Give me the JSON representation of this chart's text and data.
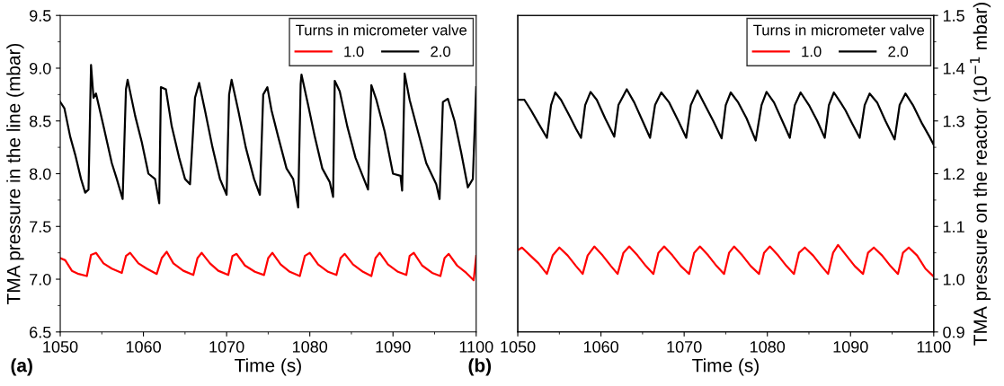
{
  "chart_data": [
    {
      "type": "line",
      "xlabel": "Time (s)",
      "ylabel": "TMA pressure in the line (mbar)",
      "legend_title": "Turns in micrometer valve",
      "legend": "top right",
      "annotations": [
        "(a)"
      ],
      "xlim": [
        1050,
        1100
      ],
      "xticks": [
        1050,
        1060,
        1070,
        1080,
        1090,
        1100
      ],
      "ylim": [
        6.5,
        9.5
      ],
      "yticks": [
        6.5,
        {
          "value": 7,
          "label": "7.0"
        },
        7.5,
        {
          "value": 8,
          "label": "8.0"
        },
        8.5,
        {
          "value": 9,
          "label": "9.0"
        },
        9.5
      ],
      "series": [
        {
          "name": "1.0",
          "color": "#ff0000",
          "x": [
            1050,
            1050.6,
            1051.4,
            1052.2,
            1053.2,
            1053.7,
            1054.3,
            1055.2,
            1056.2,
            1057.4,
            1057.9,
            1058.4,
            1059.4,
            1060.4,
            1061.6,
            1062.2,
            1062.8,
            1063.6,
            1064.8,
            1066.0,
            1066.5,
            1067.0,
            1068.0,
            1069.0,
            1070.2,
            1070.7,
            1071.2,
            1072.2,
            1073.4,
            1074.5,
            1075.0,
            1075.5,
            1076.5,
            1077.6,
            1078.8,
            1079.4,
            1080.0,
            1081.0,
            1082.2,
            1083.2,
            1083.7,
            1084.2,
            1085.2,
            1086.4,
            1087.4,
            1087.9,
            1088.4,
            1089.4,
            1090.6,
            1091.6,
            1092.0,
            1092.5,
            1093.5,
            1094.7,
            1095.7,
            1096.2,
            1096.7,
            1097.7,
            1098.8,
            1099.7,
            1100
          ],
          "values": [
            7.2,
            7.18,
            7.08,
            7.05,
            7.03,
            7.23,
            7.25,
            7.15,
            7.1,
            7.06,
            7.22,
            7.25,
            7.15,
            7.1,
            7.05,
            7.2,
            7.26,
            7.15,
            7.08,
            7.04,
            7.2,
            7.25,
            7.15,
            7.08,
            7.04,
            7.22,
            7.24,
            7.13,
            7.07,
            7.04,
            7.2,
            7.25,
            7.14,
            7.07,
            7.03,
            7.22,
            7.25,
            7.14,
            7.07,
            7.04,
            7.2,
            7.24,
            7.14,
            7.07,
            7.03,
            7.2,
            7.25,
            7.14,
            7.07,
            7.04,
            7.22,
            7.25,
            7.13,
            7.06,
            7.03,
            7.2,
            7.24,
            7.13,
            7.06,
            6.99,
            7.22
          ]
        },
        {
          "name": "2.0",
          "color": "#000000",
          "x": [
            1050,
            1050.5,
            1051.2,
            1051.8,
            1052.5,
            1053.0,
            1053.4,
            1053.7,
            1054.0,
            1054.3,
            1055.2,
            1056.2,
            1056.8,
            1057.5,
            1057.9,
            1058.1,
            1059.0,
            1059.8,
            1060.6,
            1061.4,
            1061.9,
            1062.1,
            1062.7,
            1063.4,
            1064.3,
            1065.0,
            1065.6,
            1066.2,
            1066.7,
            1067.4,
            1068.3,
            1069.2,
            1070.0,
            1070.3,
            1070.6,
            1071.4,
            1072.3,
            1073.3,
            1074.0,
            1074.4,
            1074.9,
            1075.4,
            1076.2,
            1077.2,
            1078.0,
            1078.6,
            1078.9,
            1079.0,
            1079.8,
            1080.6,
            1081.5,
            1082.4,
            1082.8,
            1083.0,
            1083.6,
            1084.5,
            1085.5,
            1086.5,
            1087.0,
            1087.4,
            1088.0,
            1089.0,
            1090.0,
            1090.9,
            1091.1,
            1091.4,
            1092.0,
            1093.0,
            1094.0,
            1095.2,
            1095.6,
            1096.0,
            1096.6,
            1097.4,
            1098.2,
            1099.0,
            1099.6,
            1100
          ],
          "values": [
            8.68,
            8.62,
            8.35,
            8.18,
            7.95,
            7.82,
            7.85,
            9.03,
            8.72,
            8.76,
            8.45,
            8.1,
            7.95,
            7.76,
            8.8,
            8.89,
            8.55,
            8.3,
            8.0,
            7.95,
            7.72,
            8.82,
            8.8,
            8.45,
            8.15,
            7.95,
            7.9,
            8.72,
            8.86,
            8.6,
            8.25,
            7.95,
            7.8,
            8.75,
            8.89,
            8.6,
            8.25,
            7.95,
            7.8,
            8.75,
            8.82,
            8.6,
            8.35,
            8.05,
            7.95,
            7.68,
            8.85,
            8.94,
            8.65,
            8.35,
            8.05,
            7.92,
            7.78,
            8.88,
            8.78,
            8.45,
            8.15,
            7.95,
            7.85,
            8.84,
            8.7,
            8.4,
            8.0,
            7.98,
            7.84,
            8.95,
            8.7,
            8.4,
            8.1,
            7.9,
            7.76,
            8.68,
            8.71,
            8.5,
            8.2,
            7.87,
            7.95,
            8.82
          ]
        }
      ]
    },
    {
      "type": "line",
      "xlabel": "Time (s)",
      "y2label": "TMA pressure on the reactor (10$^{−1}$ mbar)",
      "legend_title": "Turns in micrometer valve",
      "legend": "top right",
      "annotations": [
        "(b)"
      ],
      "xlim": [
        1050,
        1100
      ],
      "xticks": [
        1050,
        1060,
        1070,
        1080,
        1090,
        1100
      ],
      "y2lim": [
        0.9,
        1.5
      ],
      "y2ticks": [
        0.9,
        {
          "value": 1,
          "label": "1.0"
        },
        1.1,
        1.2,
        1.3,
        1.4,
        1.5
      ],
      "series": [
        {
          "name": "1.0",
          "color": "#ff0000",
          "axis": "y2",
          "x": [
            1050,
            1050.5,
            1051.5,
            1052.5,
            1053.5,
            1054.2,
            1055.0,
            1056.0,
            1057.0,
            1057.8,
            1058.4,
            1059.2,
            1060.2,
            1061.2,
            1062.0,
            1062.7,
            1063.4,
            1064.4,
            1065.4,
            1066.3,
            1066.9,
            1067.6,
            1068.6,
            1069.6,
            1070.6,
            1071.2,
            1071.9,
            1072.9,
            1073.9,
            1074.8,
            1075.4,
            1076.0,
            1077.0,
            1078.0,
            1079.0,
            1079.6,
            1080.3,
            1081.3,
            1082.3,
            1083.2,
            1083.8,
            1084.5,
            1085.5,
            1086.5,
            1087.3,
            1087.9,
            1088.5,
            1089.5,
            1090.5,
            1091.5,
            1092.1,
            1092.8,
            1093.8,
            1094.8,
            1095.7,
            1096.3,
            1097.0,
            1098.0,
            1099.0,
            1100
          ],
          "values": [
            1.055,
            1.06,
            1.045,
            1.03,
            1.01,
            1.045,
            1.06,
            1.045,
            1.025,
            1.01,
            1.045,
            1.062,
            1.045,
            1.025,
            1.01,
            1.05,
            1.062,
            1.045,
            1.025,
            1.01,
            1.05,
            1.062,
            1.045,
            1.025,
            1.01,
            1.05,
            1.062,
            1.045,
            1.025,
            1.01,
            1.05,
            1.062,
            1.045,
            1.025,
            1.01,
            1.05,
            1.062,
            1.045,
            1.025,
            1.01,
            1.05,
            1.06,
            1.045,
            1.025,
            1.01,
            1.05,
            1.065,
            1.045,
            1.025,
            1.01,
            1.05,
            1.06,
            1.045,
            1.025,
            1.01,
            1.05,
            1.06,
            1.045,
            1.02,
            1.005
          ]
        },
        {
          "name": "2.0",
          "color": "#000000",
          "axis": "y2",
          "x": [
            1050,
            1050.8,
            1051.6,
            1052.5,
            1053.5,
            1054.0,
            1054.5,
            1055.2,
            1056.2,
            1057.0,
            1057.6,
            1058.1,
            1058.75,
            1059.5,
            1060.5,
            1061.6,
            1062.1,
            1063.1,
            1064.0,
            1065.0,
            1065.9,
            1066.5,
            1067.25,
            1068.2,
            1069.3,
            1070.25,
            1070.8,
            1071.6,
            1072.5,
            1073.5,
            1074.5,
            1075.0,
            1075.6,
            1076.5,
            1077.5,
            1078.6,
            1079.3,
            1079.9,
            1080.8,
            1081.8,
            1082.7,
            1083.3,
            1084.0,
            1085.0,
            1086.0,
            1086.9,
            1087.4,
            1088.0,
            1088.8,
            1089.4,
            1090.2,
            1091.1,
            1091.7,
            1092.3,
            1093.2,
            1094.2,
            1095.3,
            1095.9,
            1096.6,
            1097.5,
            1098.6,
            1099.5,
            1100
          ],
          "values": [
            1.34,
            1.34,
            1.32,
            1.295,
            1.268,
            1.33,
            1.354,
            1.34,
            1.31,
            1.285,
            1.268,
            1.33,
            1.355,
            1.34,
            1.305,
            1.27,
            1.33,
            1.36,
            1.335,
            1.3,
            1.268,
            1.33,
            1.354,
            1.335,
            1.3,
            1.268,
            1.33,
            1.358,
            1.33,
            1.3,
            1.267,
            1.33,
            1.354,
            1.335,
            1.305,
            1.263,
            1.33,
            1.355,
            1.335,
            1.3,
            1.268,
            1.33,
            1.354,
            1.33,
            1.3,
            1.268,
            1.33,
            1.354,
            1.335,
            1.32,
            1.295,
            1.268,
            1.33,
            1.352,
            1.335,
            1.3,
            1.265,
            1.33,
            1.352,
            1.33,
            1.295,
            1.27,
            1.255
          ]
        }
      ]
    }
  ]
}
